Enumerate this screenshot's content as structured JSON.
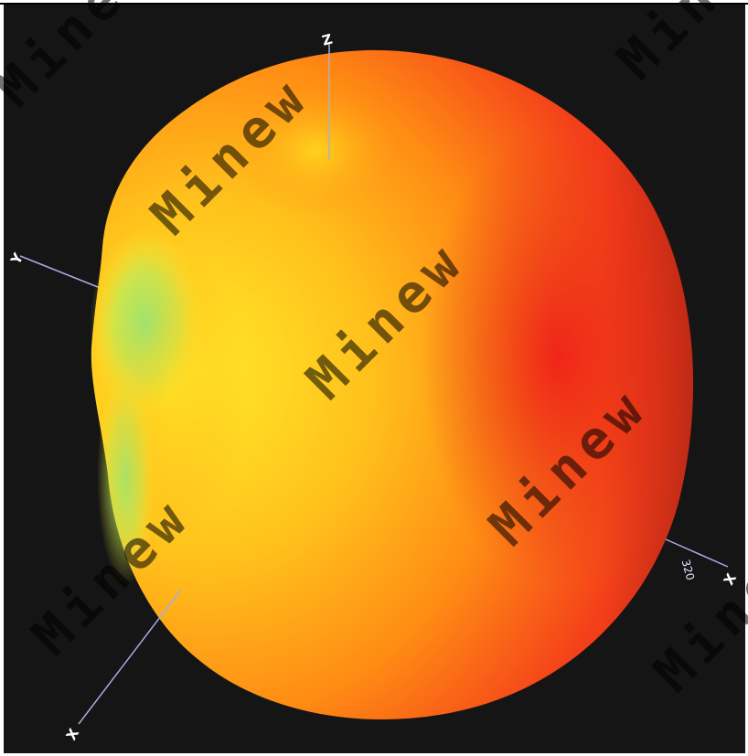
{
  "plot": {
    "type": "3d-radiation-pattern",
    "axes": {
      "z": {
        "label": "Z"
      },
      "y": {
        "label": "Y"
      },
      "x": {
        "label": "X"
      },
      "x_alt": {
        "label": "X"
      },
      "tick_label": "320"
    },
    "colors": {
      "background": "#151515",
      "high": "#ee1f1a",
      "mid": "#ff8f14",
      "low": "#ffe51e",
      "lowest": "#8ff080",
      "axis": "#9aa0e0"
    },
    "watermark": "Minew"
  }
}
